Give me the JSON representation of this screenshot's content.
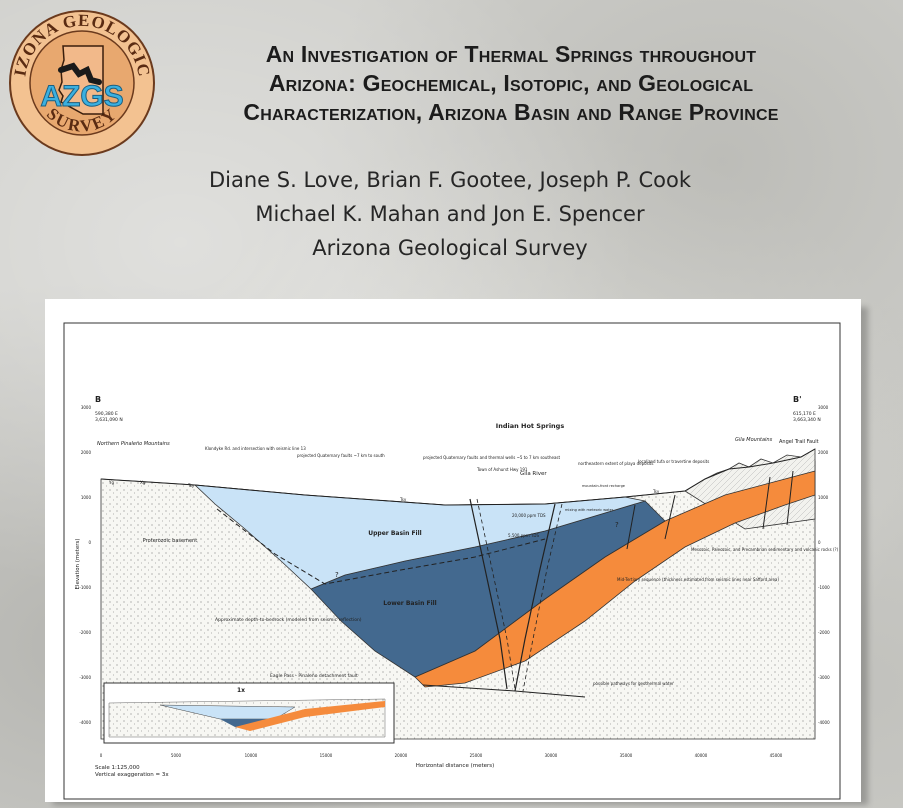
{
  "logo": {
    "ring_text_top": "ARIZONA GEOLOGICAL",
    "ring_text_bottom": "SURVEY",
    "abbrev": "AZGS",
    "colors": {
      "disc": "#e8b07f",
      "ring": "#f3c291",
      "text": "#5a2b12",
      "abbrev": "#3bb0e0"
    }
  },
  "title": {
    "line1": "An Investigation of Thermal Springs throughout",
    "line2": "Arizona: Geochemical, Isotopic, and Geological",
    "line3": "Characterization, Arizona Basin and Range Province"
  },
  "authors": {
    "line1": "Diane S. Love, Brian F. Gootee, Joseph P. Cook",
    "line2": "Michael K. Mahan and Jon E. Spencer",
    "line3": "Arizona Geological Survey"
  },
  "cross_section": {
    "left_endpoint": "B",
    "right_endpoint": "B'",
    "left_coords": [
      "590,380 E",
      "3,631,090 N"
    ],
    "right_coords": [
      "615,170 E",
      "3,663,340 N"
    ],
    "y_axis_label": "Elevation (meters)",
    "x_axis_label": "Horizontal distance (meters)",
    "y_ticks": [
      "3000",
      "2000",
      "1000",
      "0",
      "-1000",
      "-2000",
      "-3000",
      "-4000"
    ],
    "x_ticks": [
      "0",
      "5000",
      "10000",
      "15000",
      "20000",
      "25000",
      "30000",
      "35000",
      "40000",
      "45000"
    ],
    "scale": "Scale 1:125,000",
    "vertical_exaggeration": "Vertical exaggeration = 3x",
    "inset_label": "1x",
    "units": {
      "upper_basin_fill": "Upper Basin Fill",
      "lower_basin_fill": "Lower Basin Fill",
      "basement": "Proterozoic basement"
    },
    "annotations": {
      "northern_pinaleno": "Northern Pinaleño Mountains",
      "klondyke": "Klondyke Rd. and intersection with seismic line 13",
      "proj_faults_south": "projected Quaternary faults ~7 km to south",
      "proj_faults_wells": "projected Quaternary faults and thermal wells ~5 to 7 km southeast",
      "town": "Town of Ashurst Hwy 191",
      "gila_river": "Gila River",
      "indian_hot_springs": "Indian Hot Springs",
      "playa": "northeastern extent of playa deposits",
      "tufa": "localized tufa or travertine deposits",
      "recharge": "mountain-front recharge",
      "mixing": "mixing with meteoric water",
      "tds_20000": "20,000 ppm TDS",
      "tds_5500": "5,500 ppm TDS",
      "gila_mountains": "Gila Mountains",
      "angel_trail": "Angel Trail Fault",
      "mesozoic": "Mesozoic, Paleozoic, and Precambrian sedimentary and volcanic rocks (?)",
      "mid_tertiary": "Mid-Tertiary sequence (thickness estimated from seismic lines near Safford area)",
      "depth_to_bedrock": "Approximate depth-to-bedrock (modeled from seismic reflection)",
      "eagle_pass": "Eagle Pass - Pinaleño detachment fault",
      "pathways": "possible pathways for geothermal water",
      "question": "?",
      "unit_yg": "Yg",
      "unit_xg": "Xg",
      "unit_tsy": "Tsy"
    },
    "colors": {
      "upper_basin_fill": "#c9e3f7",
      "lower_basin_fill": "#43698f",
      "mid_tertiary": "#f58b3c",
      "basement": "#f6f6f2"
    }
  }
}
